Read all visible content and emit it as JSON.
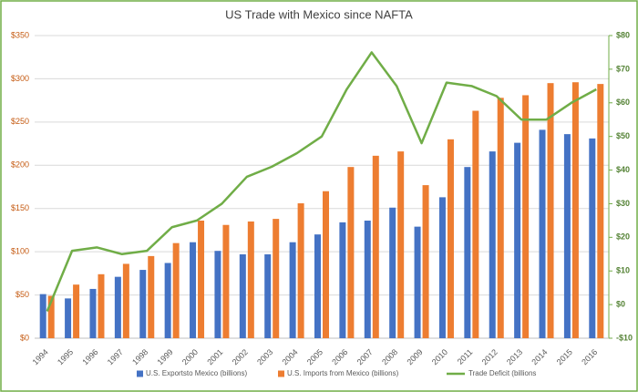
{
  "chart_data": {
    "type": "bar",
    "title": "US Trade with Mexico since NAFTA",
    "categories": [
      "1994",
      "1995",
      "1996",
      "1997",
      "1998",
      "1999",
      "2000",
      "2001",
      "2002",
      "2003",
      "2004",
      "2005",
      "2006",
      "2007",
      "2008",
      "2009",
      "2010",
      "2011",
      "2012",
      "2013",
      "2014",
      "2015",
      "2016"
    ],
    "series": [
      {
        "name": "U.S. Exportsto Mexico (billions)",
        "color": "#4472c4",
        "values": [
          51,
          46,
          57,
          71,
          79,
          87,
          111,
          101,
          97,
          97,
          111,
          120,
          134,
          136,
          151,
          129,
          163,
          198,
          216,
          226,
          241,
          236,
          231
        ]
      },
      {
        "name": "U.S. Imports from Mexico (billions)",
        "color": "#ed7d31",
        "values": [
          49,
          62,
          74,
          86,
          95,
          110,
          136,
          131,
          135,
          138,
          156,
          170,
          198,
          211,
          216,
          177,
          230,
          263,
          278,
          281,
          295,
          296,
          294
        ]
      },
      {
        "name": "Trade Deficit (billions",
        "color": "#70ad47",
        "type": "line",
        "axis": "y2",
        "values": [
          -2,
          16,
          17,
          15,
          16,
          23,
          25,
          30,
          38,
          41,
          45,
          50,
          64,
          75,
          65,
          48,
          66,
          65,
          62,
          55,
          55,
          60,
          64
        ]
      }
    ],
    "ylim": [
      0,
      350
    ],
    "yticks": [
      {
        "value": 0,
        "label": "$0"
      },
      {
        "value": 50,
        "label": "$50"
      },
      {
        "value": 100,
        "label": "$100"
      },
      {
        "value": 150,
        "label": "$150"
      },
      {
        "value": 200,
        "label": "$200"
      },
      {
        "value": 250,
        "label": "$250"
      },
      {
        "value": 300,
        "label": "$300"
      },
      {
        "value": 350,
        "label": "$350"
      }
    ],
    "y2lim": [
      -10,
      80
    ],
    "y2ticks": [
      {
        "value": -10,
        "label": "-$10"
      },
      {
        "value": 0,
        "label": "$0"
      },
      {
        "value": 10,
        "label": "$10"
      },
      {
        "value": 20,
        "label": "$20"
      },
      {
        "value": 30,
        "label": "$30"
      },
      {
        "value": 40,
        "label": "$40"
      },
      {
        "value": 50,
        "label": "$50"
      },
      {
        "value": 60,
        "label": "$60"
      },
      {
        "value": 70,
        "label": "$70"
      },
      {
        "value": 80,
        "label": "$80"
      }
    ],
    "grid": true,
    "legend": "bottom"
  }
}
